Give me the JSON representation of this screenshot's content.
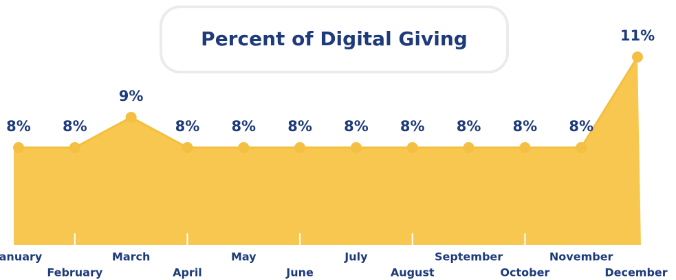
{
  "chart_data": {
    "type": "area",
    "title": "Percent of Digital Giving",
    "categories": [
      "January",
      "February",
      "March",
      "April",
      "May",
      "June",
      "July",
      "August",
      "September",
      "October",
      "November",
      "December"
    ],
    "values": [
      8,
      8,
      9,
      8,
      8,
      8,
      8,
      8,
      8,
      8,
      8,
      11
    ],
    "value_labels": [
      "8%",
      "8%",
      "9%",
      "8%",
      "8%",
      "8%",
      "8%",
      "8%",
      "8%",
      "8%",
      "8%",
      "11%"
    ],
    "color": "#f8c74f"
  }
}
